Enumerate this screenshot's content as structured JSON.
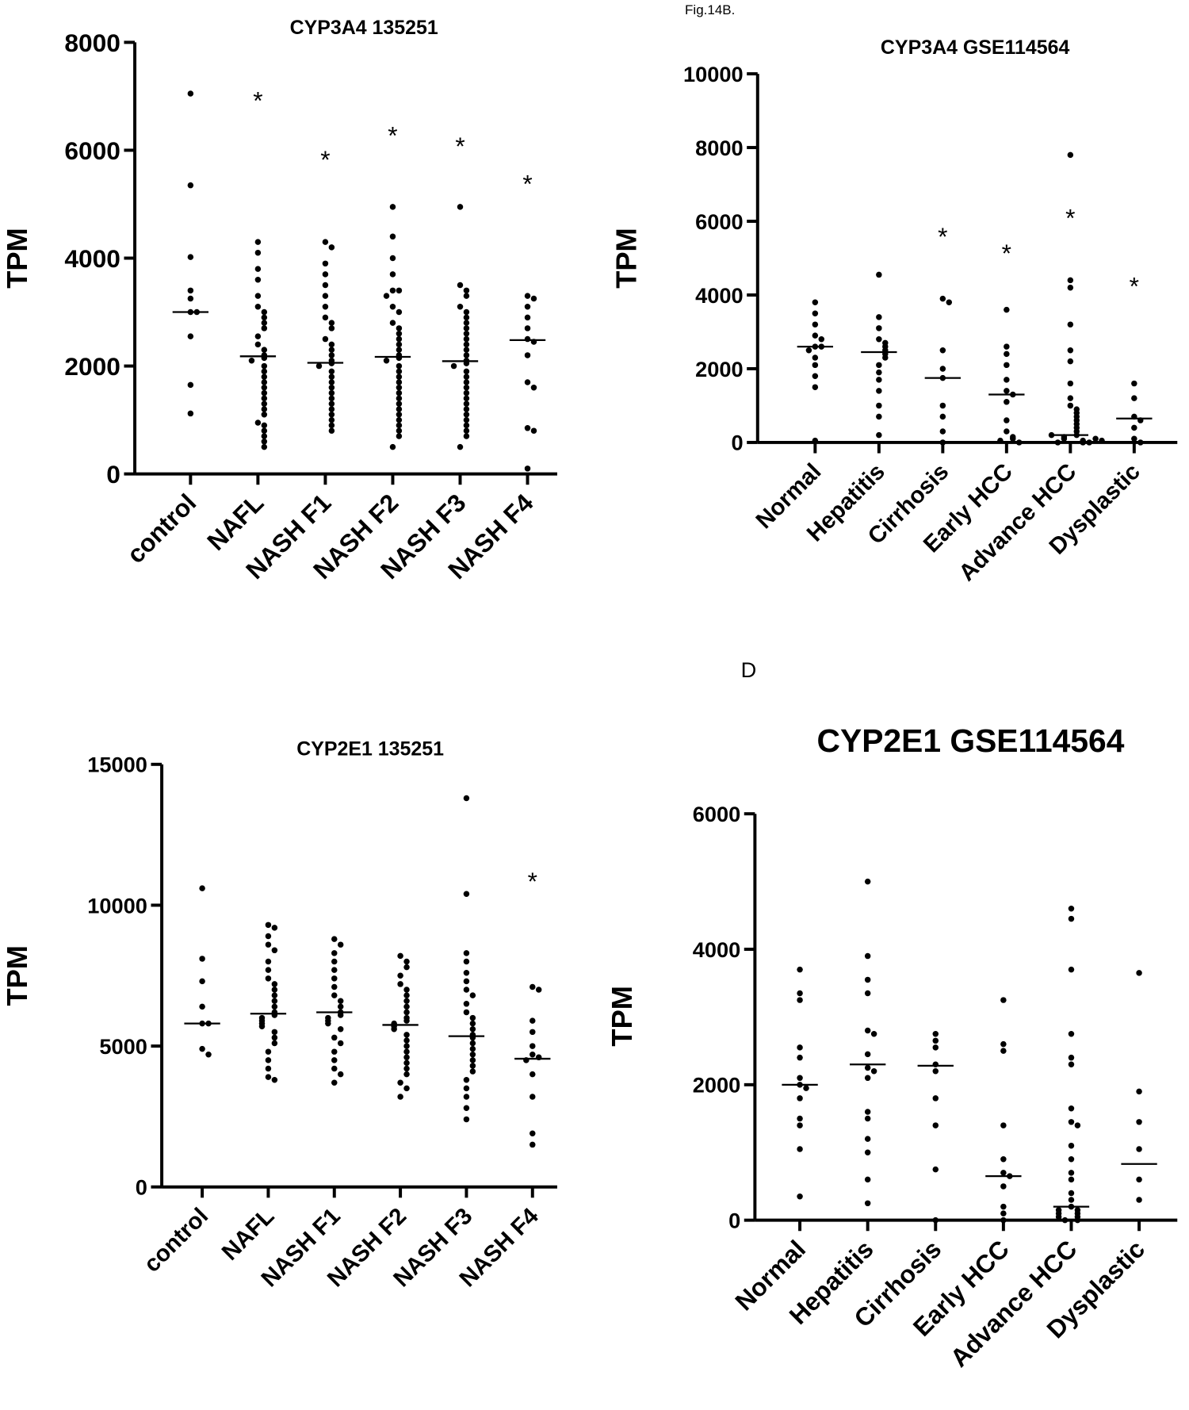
{
  "page_labels": {
    "figure": "Fig.14B.",
    "panel": "D"
  },
  "chart_data": [
    {
      "type": "strip",
      "title": "CYP3A4 135251",
      "y_label": "TPM",
      "categories": [
        "control",
        "NAFL",
        "NASH F1",
        "NASH F2",
        "NASH F3",
        "NASH F4"
      ],
      "points": [
        [
          7050,
          5350,
          4020,
          3400,
          3250,
          3000,
          3000,
          2550,
          1650,
          1120
        ],
        [
          4300,
          4100,
          3800,
          3600,
          3300,
          3100,
          3000,
          2900,
          2800,
          2700,
          2550,
          2400,
          2300,
          2200,
          2150,
          2100,
          2000,
          1900,
          1800,
          1700,
          1600,
          1500,
          1400,
          1300,
          1200,
          1100,
          950,
          900,
          800,
          700,
          600,
          500
        ],
        [
          4300,
          4200,
          3900,
          3700,
          3500,
          3300,
          3100,
          2900,
          2800,
          2700,
          2500,
          2400,
          2300,
          2200,
          2100,
          2050,
          2000,
          1900,
          1800,
          1700,
          1600,
          1500,
          1400,
          1300,
          1200,
          1100,
          1000,
          900,
          800
        ],
        [
          4950,
          4400,
          4000,
          3700,
          3400,
          3400,
          3300,
          3100,
          3000,
          2800,
          2700,
          2600,
          2500,
          2400,
          2300,
          2200,
          2150,
          2100,
          2000,
          1900,
          1800,
          1700,
          1600,
          1500,
          1400,
          1300,
          1200,
          1100,
          1000,
          900,
          800,
          700,
          500
        ],
        [
          4950,
          3500,
          3400,
          3300,
          3100,
          3000,
          2900,
          2800,
          2700,
          2600,
          2500,
          2400,
          2300,
          2200,
          2100,
          2050,
          2000,
          1900,
          1800,
          1700,
          1600,
          1500,
          1400,
          1300,
          1200,
          1100,
          1000,
          900,
          800,
          700,
          500
        ],
        [
          3300,
          3250,
          3100,
          2900,
          2700,
          2500,
          2450,
          2200,
          1700,
          1600,
          850,
          800,
          100
        ]
      ],
      "medians": [
        3000,
        2180,
        2060,
        2170,
        2090,
        2480
      ],
      "annotations": [
        {
          "category": "NAFL",
          "text": "*",
          "y": 7000
        },
        {
          "category": "NASH F1",
          "text": "*",
          "y": 5900
        },
        {
          "category": "NASH F2",
          "text": "*",
          "y": 6350
        },
        {
          "category": "NASH F3",
          "text": "*",
          "y": 6150
        },
        {
          "category": "NASH F4",
          "text": "*",
          "y": 5450
        }
      ],
      "ylim": [
        0,
        8000
      ],
      "yticks": [
        0,
        2000,
        4000,
        6000,
        8000
      ],
      "color": "#000000"
    },
    {
      "type": "strip",
      "title": "CYP3A4  GSE114564",
      "y_label": "TPM",
      "categories": [
        "Normal",
        "Hepatitis",
        "Cirrhosis",
        "Early HCC",
        "Advance HCC",
        "Dysplastic"
      ],
      "points": [
        [
          3800,
          3500,
          3200,
          2900,
          2800,
          2600,
          2600,
          2500,
          2300,
          2100,
          1800,
          1500,
          50
        ],
        [
          4550,
          3400,
          3100,
          2800,
          2700,
          2600,
          2500,
          2400,
          2300,
          2100,
          1900,
          1700,
          1400,
          1000,
          700,
          200
        ],
        [
          3900,
          3800,
          2500,
          2000,
          1750,
          1000,
          700,
          300,
          0
        ],
        [
          3600,
          2600,
          2400,
          2100,
          1700,
          1400,
          1300,
          1100,
          600,
          300,
          150,
          100,
          50,
          0
        ],
        [
          7800,
          4400,
          4200,
          3200,
          2500,
          2200,
          1600,
          1200,
          1000,
          900,
          800,
          700,
          600,
          500,
          400,
          300,
          200,
          150,
          100,
          50,
          0,
          0,
          0,
          100,
          200,
          50
        ],
        [
          1600,
          1200,
          700,
          600,
          400,
          100,
          0
        ]
      ],
      "medians": [
        2600,
        2450,
        1750,
        1300,
        200,
        650
      ],
      "annotations": [
        {
          "category": "Cirrhosis",
          "text": "*",
          "y": 5700
        },
        {
          "category": "Early HCC",
          "text": "*",
          "y": 5250
        },
        {
          "category": "Advance HCC",
          "text": "*",
          "y": 6200
        },
        {
          "category": "Dysplastic",
          "text": "*",
          "y": 4350
        }
      ],
      "ylim": [
        0,
        10000
      ],
      "yticks": [
        0,
        2000,
        4000,
        6000,
        8000,
        10000
      ],
      "color": "#000000"
    },
    {
      "type": "strip",
      "title": "CYP2E1 135251",
      "y_label": "TPM",
      "categories": [
        "control",
        "NAFL",
        "NASH F1",
        "NASH F2",
        "NASH F3",
        "NASH F4"
      ],
      "points": [
        [
          10600,
          8100,
          7300,
          6400,
          5800,
          5800,
          4900,
          4700
        ],
        [
          9300,
          9200,
          8900,
          8600,
          8400,
          8000,
          7700,
          7400,
          7200,
          7000,
          6800,
          6600,
          6400,
          6200,
          6100,
          6000,
          5900,
          5800,
          5700,
          5500,
          5300,
          5100,
          4800,
          4500,
          4200,
          3900,
          3800
        ],
        [
          8800,
          8600,
          8300,
          8000,
          7700,
          7400,
          7100,
          6800,
          6600,
          6400,
          6200,
          6100,
          6000,
          5900,
          5800,
          5600,
          5300,
          5100,
          4800,
          4500,
          4200,
          4000,
          3700
        ],
        [
          8200,
          8000,
          7800,
          7500,
          7200,
          7000,
          6800,
          6600,
          6400,
          6200,
          6000,
          5900,
          5800,
          5700,
          5600,
          5400,
          5200,
          5000,
          4800,
          4600,
          4400,
          4200,
          4000,
          3700,
          3500,
          3200
        ],
        [
          13800,
          10400,
          8300,
          8000,
          7600,
          7300,
          7000,
          6800,
          6500,
          6200,
          6000,
          5800,
          5600,
          5400,
          5300,
          5100,
          4900,
          4700,
          4500,
          4300,
          4100,
          3800,
          3500,
          3200,
          2800,
          2400
        ],
        [
          7100,
          7000,
          5900,
          5500,
          5000,
          4700,
          4600,
          4500,
          4000,
          3200,
          1900,
          1500
        ]
      ],
      "medians": [
        5800,
        6150,
        6200,
        5750,
        5350,
        4550
      ],
      "annotations": [
        {
          "category": "NASH F4",
          "text": "*",
          "y": 11000
        }
      ],
      "ylim": [
        0,
        15000
      ],
      "yticks": [
        0,
        5000,
        10000,
        15000
      ],
      "color": "#000000"
    },
    {
      "type": "strip",
      "title": "CYP2E1 GSE114564",
      "y_label": "TPM",
      "categories": [
        "Normal",
        "Hepatitis",
        "Cirrhosis",
        "Early HCC",
        "Advance HCC",
        "Dysplastic"
      ],
      "points": [
        [
          3700,
          3350,
          3250,
          2550,
          2400,
          2100,
          2000,
          1950,
          1800,
          1500,
          1400,
          1050,
          350
        ],
        [
          5000,
          3900,
          3550,
          3350,
          2800,
          2750,
          2450,
          2250,
          2200,
          2100,
          1600,
          1500,
          1200,
          1000,
          600,
          250
        ],
        [
          2750,
          2650,
          2550,
          2300,
          2200,
          1800,
          1400,
          750,
          0
        ],
        [
          3250,
          2600,
          2500,
          1400,
          900,
          700,
          650,
          500,
          200,
          100,
          0
        ],
        [
          4600,
          4450,
          3700,
          2750,
          2400,
          2300,
          1650,
          1450,
          1400,
          1100,
          900,
          700,
          600,
          400,
          300,
          200,
          150,
          100,
          50,
          0,
          0,
          50,
          100,
          150
        ],
        [
          3650,
          1900,
          1450,
          1050,
          600,
          300
        ]
      ],
      "medians": [
        2000,
        2300,
        2280,
        650,
        200,
        830
      ],
      "annotations": [],
      "ylim": [
        0,
        6000
      ],
      "yticks": [
        0,
        2000,
        4000,
        6000
      ],
      "color": "#000000"
    }
  ]
}
